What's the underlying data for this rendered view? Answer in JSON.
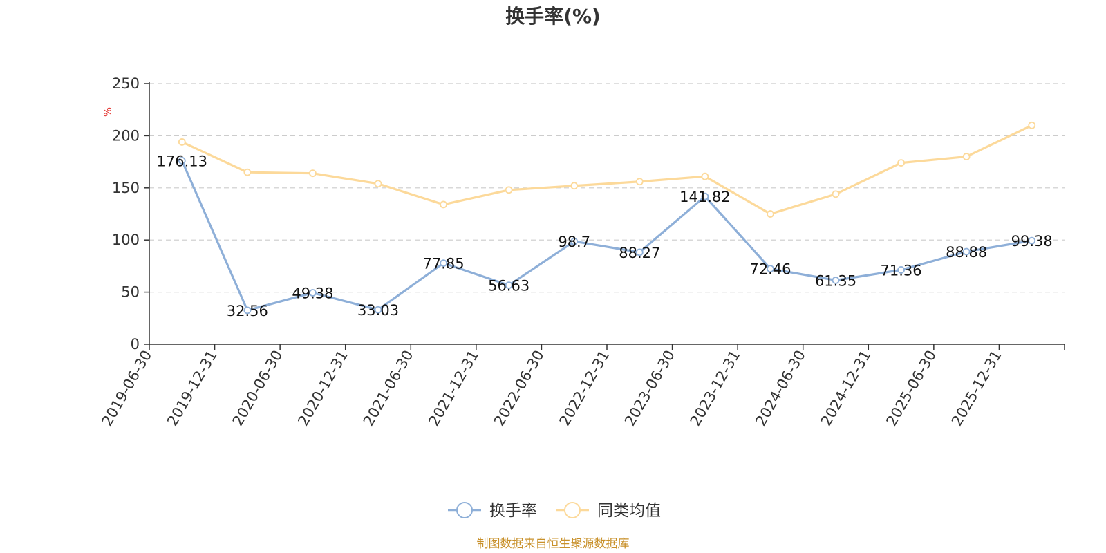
{
  "chart_data": {
    "type": "line",
    "title": "换手率(%)",
    "ylabel": "%",
    "xlabel": "",
    "ylim": [
      0,
      250
    ],
    "yticks": [
      0,
      50,
      100,
      150,
      200,
      250
    ],
    "grid": true,
    "legend_position": "bottom-center",
    "categories": [
      "2019-06-30",
      "2019-12-31",
      "2020-06-30",
      "2020-12-31",
      "2021-06-30",
      "2021-12-31",
      "2022-06-30",
      "2022-12-31",
      "2023-06-30",
      "2023-12-31",
      "2024-06-30",
      "2024-12-31",
      "2025-06-30",
      "2025-12-31"
    ],
    "series": [
      {
        "name": "换手率",
        "color": "#8eafd8",
        "show_labels": true,
        "values": [
          176.13,
          32.56,
          49.38,
          33.03,
          77.85,
          56.63,
          98.7,
          88.27,
          141.82,
          72.46,
          61.35,
          71.36,
          88.88,
          99.38
        ],
        "labels": [
          "176.13",
          "32.56",
          "49.38",
          "33.03",
          "77.85",
          "56.63",
          "98.7",
          "88.27",
          "141.82",
          "72.46",
          "61.35",
          "71.36",
          "88.88",
          "99.38"
        ]
      },
      {
        "name": "同类均值",
        "color": "#fcd99a",
        "show_labels": false,
        "values": [
          194,
          165,
          164,
          154,
          134,
          148,
          152,
          156,
          161,
          125,
          144,
          174,
          180,
          210
        ]
      }
    ]
  },
  "source_text": "制图数据来自恒生聚源数据库"
}
